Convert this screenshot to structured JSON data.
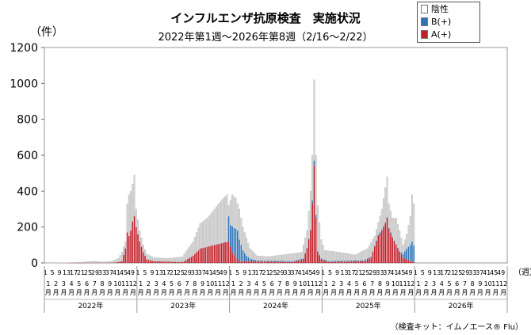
{
  "chart_data": {
    "type": "bar",
    "title": "インフルエンザ抗原検査　実施状況",
    "subtitle": "2022年第1週～2026年第8週（2/16～2/22）",
    "ylabel": "（件）",
    "xlabel": "（週）",
    "ylim": [
      0,
      1200
    ],
    "yticks": [
      0,
      200,
      400,
      600,
      800,
      1000,
      1200
    ],
    "stacked": true,
    "legend_position": "top-right",
    "legend": [
      {
        "name": "陰性",
        "color": "#d4d4d4"
      },
      {
        "name": "B(+)",
        "color": "#2e74b5"
      },
      {
        "name": "A(+)",
        "color": "#c0202a"
      }
    ],
    "week_tick_labels": [
      "1",
      "5",
      "9",
      "13",
      "17",
      "21",
      "25",
      "29",
      "33",
      "37",
      "41",
      "45",
      "49"
    ],
    "month_labels": [
      "1",
      "2",
      "3",
      "4",
      "5",
      "6",
      "7",
      "8",
      "9",
      "10",
      "11",
      "12"
    ],
    "month_suffix": "月",
    "years": [
      "2022年",
      "2023年",
      "2024年",
      "2025年",
      "2026年"
    ],
    "week_ticks_per_year": [
      13,
      13,
      13,
      13,
      13
    ],
    "weeks_per_year": 52,
    "data_weeks": 216,
    "profile_keys": {
      "total": [
        [
          1,
          0
        ],
        [
          20,
          3
        ],
        [
          28,
          10
        ],
        [
          34,
          5
        ],
        [
          38,
          8
        ],
        [
          42,
          25
        ],
        [
          44,
          60
        ],
        [
          46,
          120
        ],
        [
          47,
          330
        ],
        [
          48,
          380
        ],
        [
          49,
          400
        ],
        [
          50,
          440
        ],
        [
          51,
          490
        ],
        [
          52,
          300
        ],
        [
          54,
          180
        ],
        [
          56,
          100
        ],
        [
          58,
          50
        ],
        [
          62,
          30
        ],
        [
          70,
          25
        ],
        [
          78,
          35
        ],
        [
          84,
          120
        ],
        [
          88,
          220
        ],
        [
          92,
          250
        ],
        [
          96,
          300
        ],
        [
          100,
          350
        ],
        [
          103,
          380
        ],
        [
          104,
          320
        ],
        [
          106,
          380
        ],
        [
          108,
          360
        ],
        [
          110,
          300
        ],
        [
          112,
          200
        ],
        [
          116,
          80
        ],
        [
          120,
          40
        ],
        [
          126,
          35
        ],
        [
          130,
          40
        ],
        [
          138,
          50
        ],
        [
          145,
          60
        ],
        [
          148,
          180
        ],
        [
          150,
          400
        ],
        [
          151,
          600
        ],
        [
          152,
          1020
        ],
        [
          153,
          600
        ],
        [
          154,
          320
        ],
        [
          156,
          130
        ],
        [
          158,
          70
        ],
        [
          166,
          60
        ],
        [
          175,
          45
        ],
        [
          182,
          80
        ],
        [
          186,
          150
        ],
        [
          190,
          300
        ],
        [
          192,
          420
        ],
        [
          193,
          480
        ],
        [
          194,
          330
        ],
        [
          196,
          250
        ],
        [
          198,
          250
        ],
        [
          200,
          180
        ],
        [
          202,
          100
        ],
        [
          204,
          160
        ],
        [
          206,
          260
        ],
        [
          207,
          380
        ],
        [
          208,
          330
        ]
      ],
      "a": [
        [
          1,
          0
        ],
        [
          40,
          2
        ],
        [
          44,
          10
        ],
        [
          46,
          80
        ],
        [
          47,
          170
        ],
        [
          48,
          150
        ],
        [
          49,
          180
        ],
        [
          50,
          230
        ],
        [
          51,
          260
        ],
        [
          52,
          200
        ],
        [
          54,
          120
        ],
        [
          56,
          60
        ],
        [
          58,
          20
        ],
        [
          62,
          10
        ],
        [
          78,
          5
        ],
        [
          84,
          40
        ],
        [
          88,
          80
        ],
        [
          92,
          90
        ],
        [
          96,
          100
        ],
        [
          100,
          110
        ],
        [
          104,
          120
        ],
        [
          106,
          60
        ],
        [
          108,
          30
        ],
        [
          110,
          10
        ],
        [
          140,
          5
        ],
        [
          146,
          20
        ],
        [
          148,
          80
        ],
        [
          150,
          180
        ],
        [
          151,
          330
        ],
        [
          152,
          540
        ],
        [
          153,
          250
        ],
        [
          154,
          60
        ],
        [
          156,
          20
        ],
        [
          160,
          5
        ],
        [
          180,
          10
        ],
        [
          184,
          30
        ],
        [
          186,
          90
        ],
        [
          188,
          150
        ],
        [
          190,
          180
        ],
        [
          192,
          220
        ],
        [
          193,
          250
        ],
        [
          194,
          190
        ],
        [
          196,
          140
        ],
        [
          198,
          100
        ],
        [
          200,
          60
        ],
        [
          202,
          30
        ],
        [
          204,
          20
        ],
        [
          206,
          10
        ],
        [
          208,
          5
        ]
      ],
      "b": [
        [
          1,
          0
        ],
        [
          103,
          0
        ],
        [
          104,
          140
        ],
        [
          105,
          120
        ],
        [
          106,
          145
        ],
        [
          107,
          150
        ],
        [
          108,
          160
        ],
        [
          109,
          160
        ],
        [
          110,
          120
        ],
        [
          112,
          60
        ],
        [
          114,
          30
        ],
        [
          116,
          15
        ],
        [
          120,
          5
        ],
        [
          150,
          5
        ],
        [
          152,
          30
        ],
        [
          154,
          5
        ],
        [
          200,
          5
        ],
        [
          202,
          20
        ],
        [
          204,
          60
        ],
        [
          206,
          90
        ],
        [
          207,
          110
        ],
        [
          208,
          90
        ]
      ]
    }
  },
  "note": "（検査キット：イムノエース® Flu）"
}
